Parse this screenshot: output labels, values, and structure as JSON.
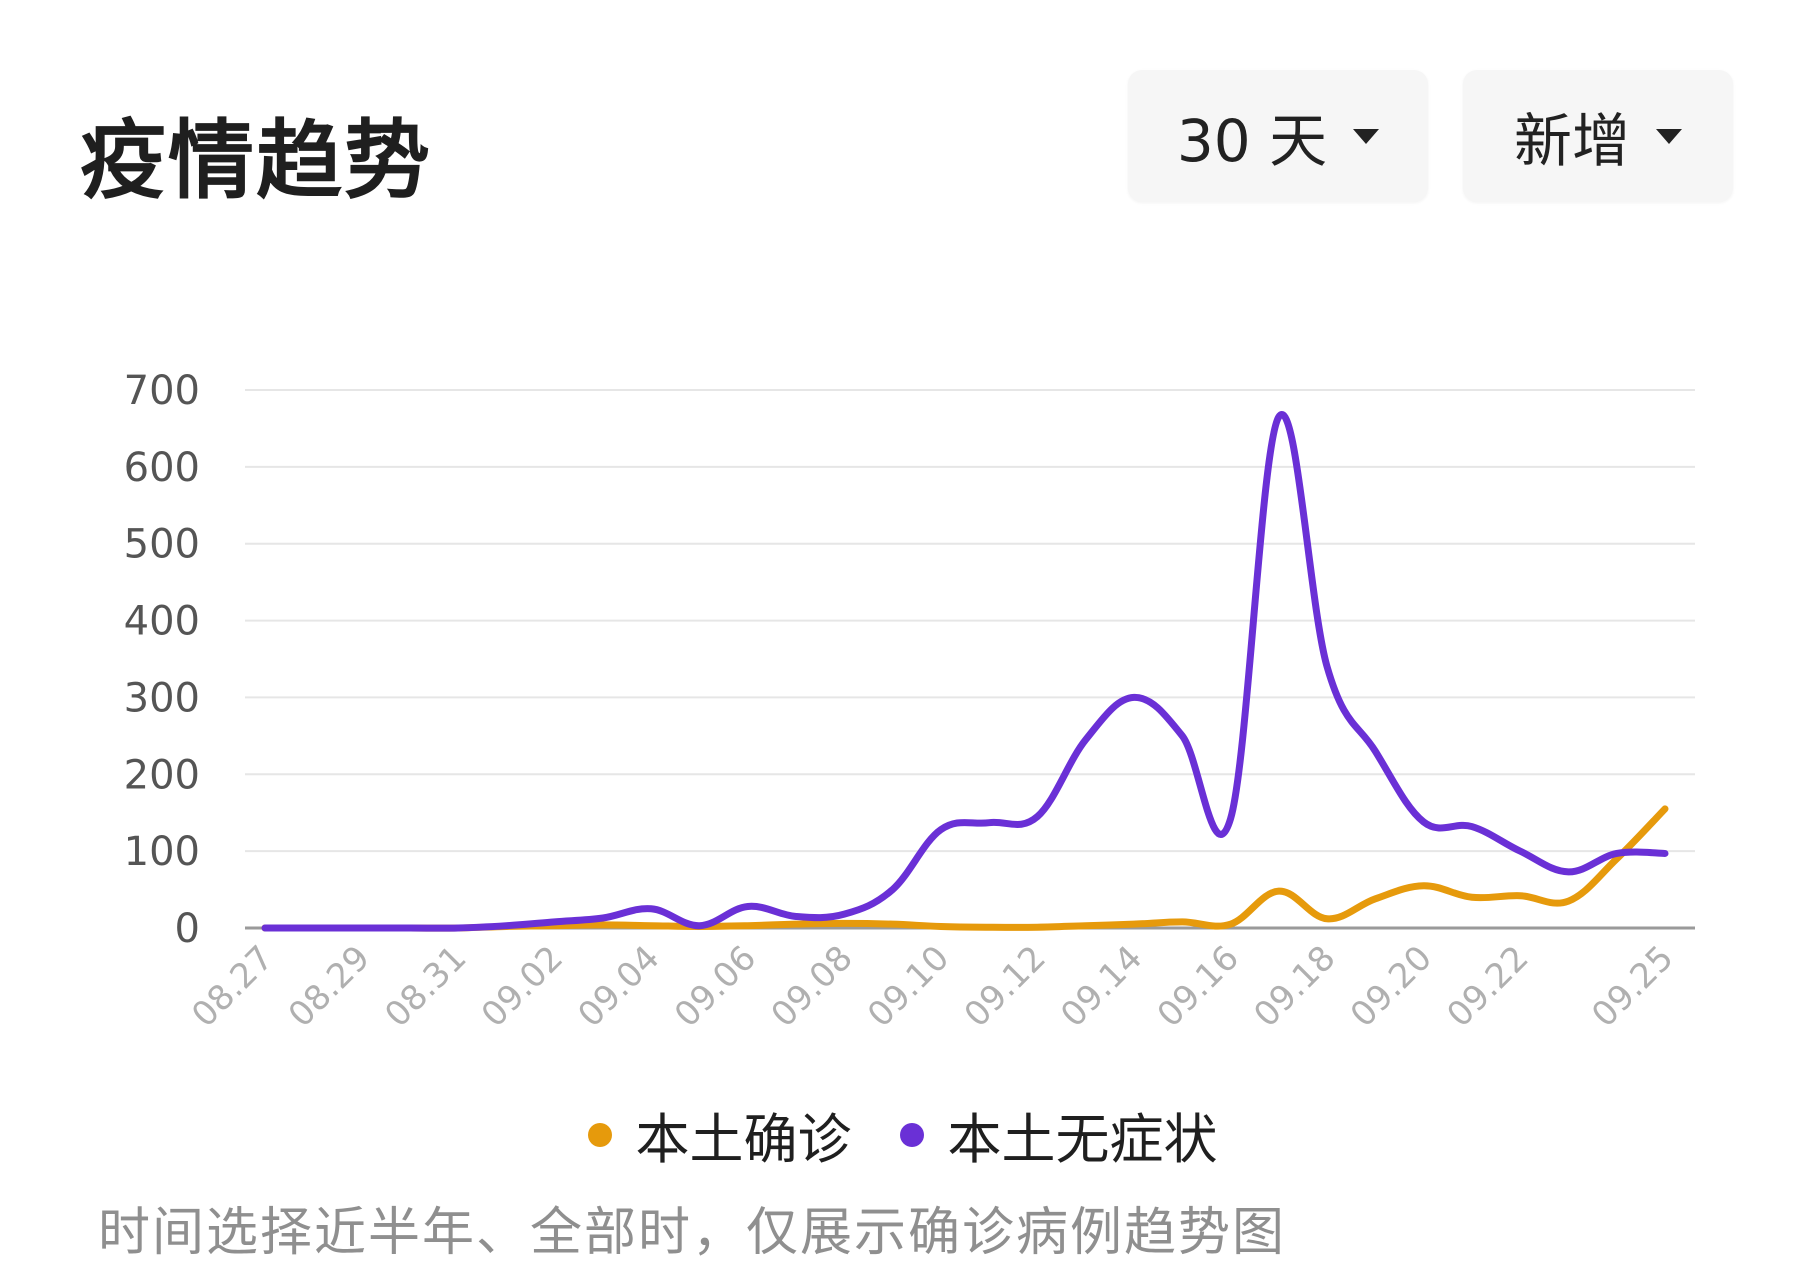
{
  "header": {
    "title": "疫情趋势"
  },
  "controls": {
    "range_label": "30 天",
    "type_label": "新增"
  },
  "footer": {
    "note": "时间选择近半年、全部时，仅展示确诊病例趋势图"
  },
  "chart_data": {
    "type": "line",
    "x": [
      "08.27",
      "08.28",
      "08.29",
      "08.30",
      "08.31",
      "09.01",
      "09.02",
      "09.03",
      "09.04",
      "09.05",
      "09.06",
      "09.07",
      "09.08",
      "09.09",
      "09.10",
      "09.11",
      "09.12",
      "09.13",
      "09.14",
      "09.15",
      "09.16",
      "09.17",
      "09.18",
      "09.19",
      "09.20",
      "09.21",
      "09.22",
      "09.23",
      "09.24",
      "09.25"
    ],
    "x_tick_labels": [
      "08.27",
      "08.29",
      "08.31",
      "09.02",
      "09.04",
      "09.06",
      "09.08",
      "09.10",
      "09.12",
      "09.14",
      "09.16",
      "09.18",
      "09.20",
      "09.22",
      "09.25"
    ],
    "y_ticks": [
      "0",
      "100",
      "200",
      "300",
      "400",
      "500",
      "600",
      "700"
    ],
    "ylim": [
      0,
      700
    ],
    "grid": true,
    "legend_position": "bottom-center",
    "series": [
      {
        "name": "本土确诊",
        "color": "#E69A0C",
        "values": [
          0,
          0,
          0,
          0,
          0,
          2,
          3,
          4,
          3,
          2,
          3,
          5,
          6,
          5,
          2,
          1,
          1,
          3,
          5,
          8,
          5,
          48,
          12,
          38,
          55,
          40,
          42,
          35,
          90,
          155
        ]
      },
      {
        "name": "本土无症状",
        "color": "#6A30D6",
        "values": [
          0,
          0,
          0,
          0,
          0,
          3,
          8,
          13,
          25,
          3,
          28,
          15,
          18,
          50,
          128,
          137,
          145,
          245,
          300,
          250,
          142,
          665,
          340,
          230,
          138,
          132,
          100,
          73,
          97,
          97
        ]
      }
    ]
  }
}
